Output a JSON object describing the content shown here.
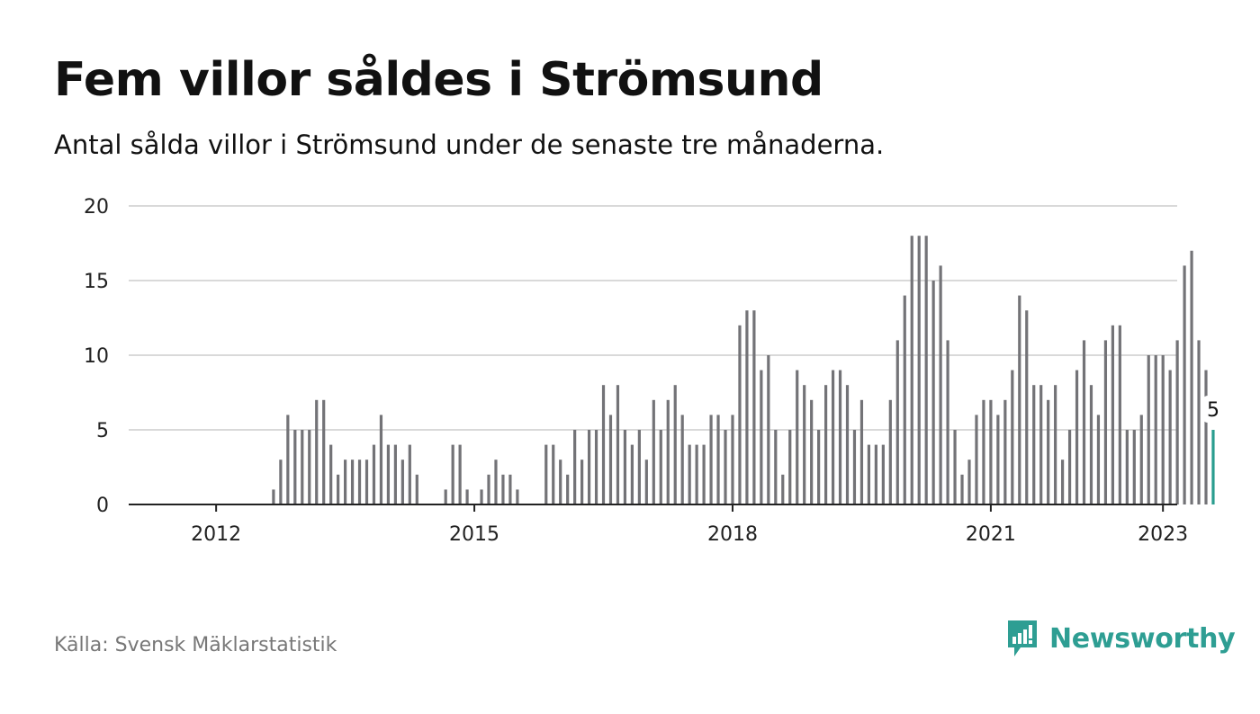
{
  "title": "Fem villor såldes i Strömsund",
  "subtitle": "Antal sålda villor i Strömsund under de senaste tre månaderna.",
  "source": "Källa: Svensk Mäklarstatistik",
  "brand": {
    "name": "Newsworthy",
    "icon": "newsworthy-logo-icon",
    "color": "#2e9e93"
  },
  "colors": {
    "bar": "#737377",
    "highlight": "#2a9d8f",
    "grid": "#d9d9d9",
    "axis": "#222222"
  },
  "chart_data": {
    "type": "bar",
    "ylim": [
      0,
      20
    ],
    "yticks": [
      "0",
      "5",
      "10",
      "15",
      "20"
    ],
    "xticks": [
      "2012",
      "2015",
      "2018",
      "2021",
      "2023"
    ],
    "grid": true,
    "start": "2011-01",
    "end": "2023-01",
    "values": [
      null,
      null,
      null,
      null,
      null,
      null,
      null,
      null,
      null,
      null,
      null,
      null,
      null,
      null,
      null,
      null,
      null,
      null,
      null,
      null,
      1,
      3,
      6,
      5,
      5,
      5,
      7,
      7,
      4,
      2,
      3,
      3,
      3,
      3,
      4,
      6,
      4,
      4,
      3,
      4,
      2,
      null,
      null,
      null,
      1,
      4,
      4,
      1,
      null,
      1,
      2,
      3,
      2,
      2,
      1,
      null,
      null,
      null,
      4,
      4,
      3,
      2,
      5,
      3,
      5,
      5,
      8,
      6,
      8,
      5,
      4,
      5,
      3,
      7,
      5,
      7,
      8,
      6,
      4,
      4,
      4,
      6,
      6,
      5,
      6,
      12,
      13,
      13,
      9,
      10,
      5,
      2,
      5,
      9,
      8,
      7,
      5,
      8,
      9,
      9,
      8,
      5,
      7,
      4,
      4,
      4,
      7,
      11,
      14,
      18,
      18,
      18,
      15,
      16,
      11,
      5,
      2,
      3,
      6,
      7,
      7,
      6,
      7,
      9,
      14,
      13,
      8,
      8,
      7,
      8,
      3,
      5,
      9,
      11,
      8,
      6,
      11,
      12,
      12,
      5,
      5,
      6,
      10,
      10,
      10,
      9,
      11,
      16,
      17,
      11,
      9,
      5
    ],
    "highlight_last": true,
    "highlight_label": "5"
  }
}
